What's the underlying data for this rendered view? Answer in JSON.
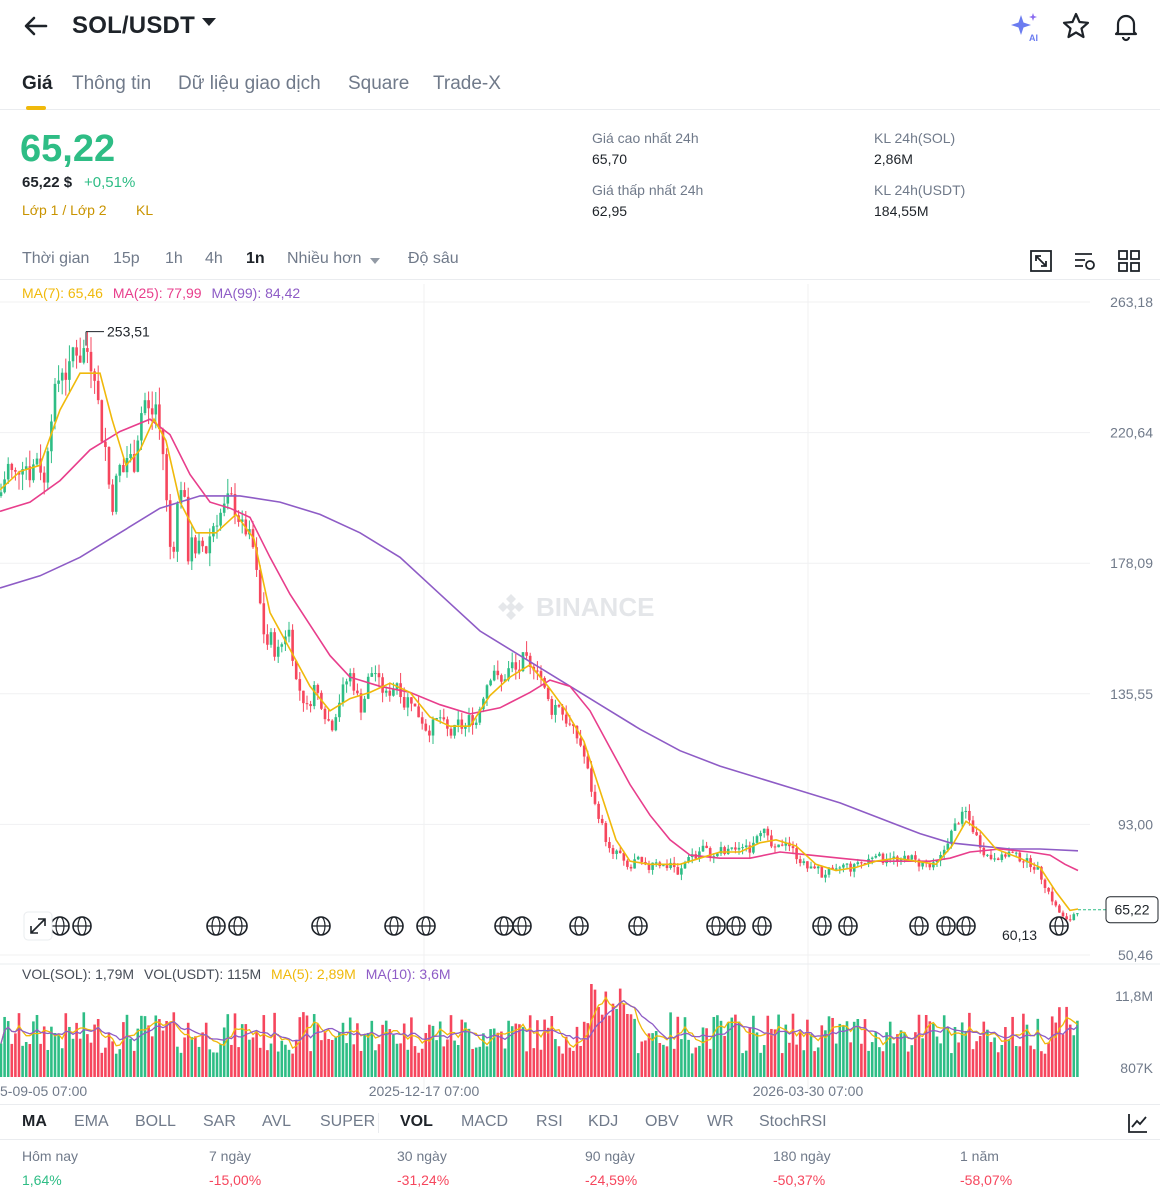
{
  "header": {
    "pair": "SOL/USDT",
    "icons": [
      "back-arrow-icon",
      "ai-sparkle-icon",
      "star-icon",
      "bell-icon"
    ]
  },
  "tabs": [
    {
      "label": "Giá",
      "active": true
    },
    {
      "label": "Thông tin"
    },
    {
      "label": "Dữ liệu giao dịch"
    },
    {
      "label": "Square"
    },
    {
      "label": "Trade-X"
    }
  ],
  "price": {
    "last": "65,22",
    "usd": "65,22 $",
    "change": "+0,51%",
    "layer": "Lớp 1 / Lớp 2",
    "kl": "KL"
  },
  "stats": {
    "high_label": "Giá cao nhất 24h",
    "high_value": "65,70",
    "low_label": "Giá thấp nhất 24h",
    "low_value": "62,95",
    "vol_sol_label": "KL 24h(SOL)",
    "vol_sol_value": "2,86M",
    "vol_usdt_label": "KL 24h(USDT)",
    "vol_usdt_value": "184,55M"
  },
  "intervals": [
    {
      "label": "Thời gian"
    },
    {
      "label": "15p"
    },
    {
      "label": "1h"
    },
    {
      "label": "4h"
    },
    {
      "label": "1n",
      "active": true
    },
    {
      "label": "Nhiều hơn"
    },
    {
      "label": "Độ sâu"
    }
  ],
  "ma_legend": {
    "ma7": "MA(7): 65,46",
    "ma25": "MA(25): 77,99",
    "ma99": "MA(99): 84,42"
  },
  "vol_legend": {
    "vol_sol": "VOL(SOL): 1,79M",
    "vol_usdt": "VOL(USDT): 115M",
    "ma5": "MA(5): 2,89M",
    "ma10": "MA(10): 3,6M"
  },
  "colors": {
    "up": "#2ebd85",
    "down": "#f6465d",
    "ma7": "#f0b90b",
    "ma25": "#e83e8c",
    "ma99": "#8e5cc6",
    "accent": "#f0b90b"
  },
  "watermark": "BINANCE",
  "chart_data": {
    "type": "candlestick",
    "title": "",
    "y_ticks": [
      "263,18",
      "220,64",
      "178,09",
      "135,55",
      "93,00",
      "50,46"
    ],
    "vol_ticks": [
      "11,8M",
      "807K"
    ],
    "x_ticks": [
      "5-09-05 07:00",
      "2025-12-17 07:00",
      "2026-03-30 07:00"
    ],
    "current_price_label": "65,22",
    "high_marker": "253,51",
    "low_marker": "60,13",
    "ylim": [
      50.46,
      263.18
    ],
    "close_path": [
      [
        0,
        200
      ],
      [
        8,
        210
      ],
      [
        14,
        206
      ],
      [
        24,
        212
      ],
      [
        30,
        207
      ],
      [
        38,
        214
      ],
      [
        44,
        203
      ],
      [
        50,
        225
      ],
      [
        56,
        235
      ],
      [
        62,
        242
      ],
      [
        68,
        238
      ],
      [
        74,
        250
      ],
      [
        80,
        245
      ],
      [
        86,
        249
      ],
      [
        90,
        244
      ],
      [
        96,
        240
      ],
      [
        100,
        222
      ],
      [
        106,
        215
      ],
      [
        110,
        200
      ],
      [
        114,
        196
      ],
      [
        118,
        212
      ],
      [
        122,
        206
      ],
      [
        128,
        214
      ],
      [
        134,
        210
      ],
      [
        140,
        226
      ],
      [
        146,
        232
      ],
      [
        150,
        225
      ],
      [
        156,
        230
      ],
      [
        160,
        220
      ],
      [
        164,
        212
      ],
      [
        168,
        190
      ],
      [
        172,
        178
      ],
      [
        176,
        192
      ],
      [
        180,
        205
      ],
      [
        184,
        200
      ],
      [
        188,
        180
      ],
      [
        192,
        188
      ],
      [
        196,
        178
      ],
      [
        200,
        185
      ],
      [
        206,
        182
      ],
      [
        212,
        190
      ],
      [
        218,
        193
      ],
      [
        224,
        196
      ],
      [
        230,
        200
      ],
      [
        236,
        195
      ],
      [
        242,
        190
      ],
      [
        248,
        188
      ],
      [
        254,
        182
      ],
      [
        258,
        170
      ],
      [
        262,
        160
      ],
      [
        266,
        150
      ],
      [
        270,
        155
      ],
      [
        276,
        148
      ],
      [
        282,
        152
      ],
      [
        288,
        158
      ],
      [
        292,
        150
      ],
      [
        296,
        140
      ],
      [
        302,
        135
      ],
      [
        308,
        130
      ],
      [
        314,
        138
      ],
      [
        320,
        134
      ],
      [
        326,
        128
      ],
      [
        332,
        125
      ],
      [
        338,
        132
      ],
      [
        344,
        138
      ],
      [
        350,
        142
      ],
      [
        356,
        136
      ],
      [
        362,
        130
      ],
      [
        368,
        140
      ],
      [
        374,
        144
      ],
      [
        380,
        138
      ],
      [
        386,
        135
      ],
      [
        392,
        137
      ],
      [
        398,
        140
      ],
      [
        404,
        132
      ],
      [
        410,
        135
      ],
      [
        416,
        130
      ],
      [
        422,
        127
      ],
      [
        428,
        123
      ],
      [
        434,
        126
      ],
      [
        440,
        128
      ],
      [
        446,
        124
      ],
      [
        452,
        122
      ],
      [
        458,
        126
      ],
      [
        464,
        124
      ],
      [
        470,
        128
      ],
      [
        476,
        126
      ],
      [
        482,
        134
      ],
      [
        488,
        140
      ],
      [
        494,
        144
      ],
      [
        500,
        138
      ],
      [
        506,
        142
      ],
      [
        512,
        145
      ],
      [
        518,
        142
      ],
      [
        524,
        148
      ],
      [
        530,
        143
      ],
      [
        536,
        146
      ],
      [
        540,
        142
      ],
      [
        546,
        135
      ],
      [
        552,
        130
      ],
      [
        558,
        133
      ],
      [
        564,
        128
      ],
      [
        570,
        125
      ],
      [
        576,
        122
      ],
      [
        582,
        118
      ],
      [
        588,
        110
      ],
      [
        594,
        100
      ],
      [
        600,
        95
      ],
      [
        606,
        88
      ],
      [
        612,
        82
      ],
      [
        618,
        85
      ],
      [
        624,
        80
      ],
      [
        630,
        78
      ],
      [
        636,
        82
      ],
      [
        642,
        80
      ],
      [
        648,
        78
      ],
      [
        654,
        82
      ],
      [
        660,
        80
      ],
      [
        666,
        79
      ],
      [
        672,
        81
      ],
      [
        678,
        76
      ],
      [
        684,
        80
      ],
      [
        690,
        84
      ],
      [
        696,
        82
      ],
      [
        702,
        86
      ],
      [
        708,
        84
      ],
      [
        714,
        82
      ],
      [
        720,
        85
      ],
      [
        726,
        83
      ],
      [
        732,
        86
      ],
      [
        738,
        84
      ],
      [
        744,
        87
      ],
      [
        750,
        85
      ],
      [
        756,
        90
      ],
      [
        762,
        92
      ],
      [
        768,
        88
      ],
      [
        774,
        84
      ],
      [
        780,
        86
      ],
      [
        786,
        88
      ],
      [
        792,
        85
      ],
      [
        798,
        82
      ],
      [
        804,
        80
      ],
      [
        810,
        78
      ],
      [
        816,
        80
      ],
      [
        822,
        76
      ],
      [
        828,
        78
      ],
      [
        834,
        77
      ],
      [
        840,
        79
      ],
      [
        846,
        80
      ],
      [
        852,
        78
      ],
      [
        858,
        81
      ],
      [
        864,
        80
      ],
      [
        870,
        82
      ],
      [
        876,
        84
      ],
      [
        882,
        81
      ],
      [
        888,
        83
      ],
      [
        894,
        82
      ],
      [
        900,
        80
      ],
      [
        906,
        83
      ],
      [
        912,
        82
      ],
      [
        918,
        80
      ],
      [
        924,
        81
      ],
      [
        930,
        79
      ],
      [
        936,
        80
      ],
      [
        942,
        83
      ],
      [
        948,
        88
      ],
      [
        954,
        92
      ],
      [
        960,
        95
      ],
      [
        966,
        97
      ],
      [
        972,
        92
      ],
      [
        978,
        88
      ],
      [
        984,
        84
      ],
      [
        990,
        82
      ],
      [
        996,
        83
      ],
      [
        1002,
        82
      ],
      [
        1008,
        84
      ],
      [
        1014,
        83
      ],
      [
        1020,
        82
      ],
      [
        1026,
        81
      ],
      [
        1032,
        80
      ],
      [
        1038,
        78
      ],
      [
        1044,
        74
      ],
      [
        1050,
        70
      ],
      [
        1056,
        66
      ],
      [
        1062,
        63
      ],
      [
        1068,
        61
      ],
      [
        1074,
        64
      ],
      [
        1078,
        65.22
      ]
    ],
    "ma7_path": [
      [
        0,
        202
      ],
      [
        20,
        208
      ],
      [
        40,
        210
      ],
      [
        60,
        228
      ],
      [
        80,
        240
      ],
      [
        100,
        240
      ],
      [
        112,
        225
      ],
      [
        126,
        210
      ],
      [
        140,
        215
      ],
      [
        154,
        225
      ],
      [
        166,
        218
      ],
      [
        180,
        198
      ],
      [
        196,
        188
      ],
      [
        216,
        188
      ],
      [
        236,
        194
      ],
      [
        254,
        186
      ],
      [
        270,
        162
      ],
      [
        290,
        150
      ],
      [
        310,
        138
      ],
      [
        330,
        130
      ],
      [
        350,
        134
      ],
      [
        370,
        136
      ],
      [
        390,
        139
      ],
      [
        410,
        136
      ],
      [
        430,
        128
      ],
      [
        450,
        125
      ],
      [
        470,
        125
      ],
      [
        490,
        135
      ],
      [
        510,
        141
      ],
      [
        530,
        145
      ],
      [
        548,
        138
      ],
      [
        566,
        130
      ],
      [
        584,
        120
      ],
      [
        600,
        104
      ],
      [
        616,
        88
      ],
      [
        630,
        81
      ],
      [
        650,
        80
      ],
      [
        680,
        80
      ],
      [
        700,
        82
      ],
      [
        720,
        84
      ],
      [
        740,
        84
      ],
      [
        760,
        87
      ],
      [
        776,
        88
      ],
      [
        796,
        86
      ],
      [
        816,
        80
      ],
      [
        836,
        78
      ],
      [
        856,
        79
      ],
      [
        876,
        81
      ],
      [
        896,
        82
      ],
      [
        916,
        81
      ],
      [
        936,
        80
      ],
      [
        952,
        86
      ],
      [
        966,
        94
      ],
      [
        980,
        91
      ],
      [
        996,
        85
      ],
      [
        1020,
        82
      ],
      [
        1040,
        79
      ],
      [
        1056,
        71
      ],
      [
        1070,
        65
      ],
      [
        1078,
        65.46
      ]
    ],
    "ma25_path": [
      [
        0,
        195
      ],
      [
        30,
        198
      ],
      [
        60,
        205
      ],
      [
        90,
        215
      ],
      [
        120,
        221
      ],
      [
        150,
        225
      ],
      [
        170,
        220
      ],
      [
        190,
        207
      ],
      [
        210,
        198
      ],
      [
        230,
        196
      ],
      [
        250,
        193
      ],
      [
        270,
        180
      ],
      [
        290,
        168
      ],
      [
        310,
        158
      ],
      [
        330,
        148
      ],
      [
        350,
        141
      ],
      [
        380,
        138
      ],
      [
        410,
        136
      ],
      [
        440,
        132
      ],
      [
        470,
        129
      ],
      [
        500,
        131
      ],
      [
        530,
        136
      ],
      [
        550,
        140
      ],
      [
        570,
        138
      ],
      [
        590,
        130
      ],
      [
        610,
        118
      ],
      [
        630,
        106
      ],
      [
        650,
        96
      ],
      [
        670,
        88
      ],
      [
        690,
        83
      ],
      [
        720,
        82
      ],
      [
        750,
        82
      ],
      [
        780,
        84
      ],
      [
        810,
        83
      ],
      [
        840,
        82
      ],
      [
        870,
        81
      ],
      [
        900,
        81
      ],
      [
        930,
        81
      ],
      [
        950,
        82
      ],
      [
        970,
        84
      ],
      [
        1000,
        85
      ],
      [
        1030,
        84
      ],
      [
        1050,
        83
      ],
      [
        1065,
        80
      ],
      [
        1078,
        77.99
      ]
    ],
    "ma99_path": [
      [
        0,
        170
      ],
      [
        40,
        174
      ],
      [
        80,
        180
      ],
      [
        120,
        188
      ],
      [
        160,
        196
      ],
      [
        200,
        200
      ],
      [
        240,
        200
      ],
      [
        280,
        198
      ],
      [
        320,
        194
      ],
      [
        360,
        188
      ],
      [
        400,
        180
      ],
      [
        440,
        168
      ],
      [
        480,
        156
      ],
      [
        520,
        148
      ],
      [
        560,
        140
      ],
      [
        600,
        132
      ],
      [
        640,
        124
      ],
      [
        680,
        117
      ],
      [
        720,
        112
      ],
      [
        760,
        108
      ],
      [
        800,
        104
      ],
      [
        840,
        100
      ],
      [
        880,
        95
      ],
      [
        920,
        90
      ],
      [
        950,
        87
      ],
      [
        980,
        86
      ],
      [
        1010,
        85
      ],
      [
        1040,
        85
      ],
      [
        1078,
        84.42
      ]
    ]
  },
  "indicators": [
    {
      "label": "MA",
      "active": true
    },
    {
      "label": "EMA"
    },
    {
      "label": "BOLL"
    },
    {
      "label": "SAR"
    },
    {
      "label": "AVL"
    },
    {
      "label": "SUPER"
    },
    {
      "label": "VOL",
      "active": true
    },
    {
      "label": "MACD"
    },
    {
      "label": "RSI"
    },
    {
      "label": "KDJ"
    },
    {
      "label": "OBV"
    },
    {
      "label": "WR"
    },
    {
      "label": "StochRSI"
    }
  ],
  "performance": [
    {
      "label": "Hôm nay",
      "value": "1,64%",
      "up": true
    },
    {
      "label": "7 ngày",
      "value": "-15,00%"
    },
    {
      "label": "30 ngày",
      "value": "-31,24%"
    },
    {
      "label": "90 ngày",
      "value": "-24,59%"
    },
    {
      "label": "180 ngày",
      "value": "-50,37%"
    },
    {
      "label": "1 năm",
      "value": "-58,07%"
    }
  ]
}
